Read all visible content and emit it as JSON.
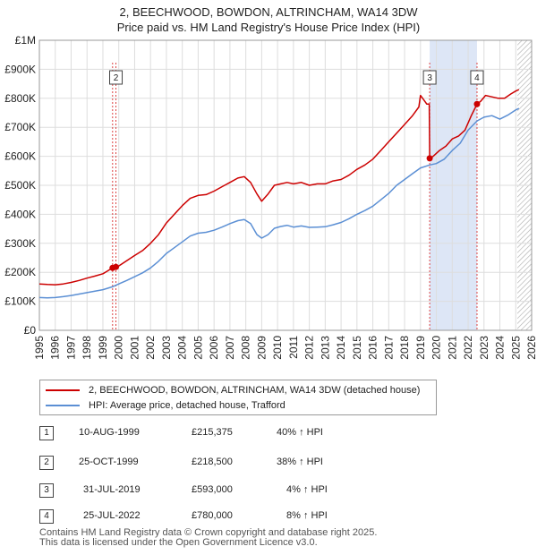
{
  "title_line1": "2, BEECHWOOD, BOWDON, ALTRINCHAM, WA14 3DW",
  "title_line2": "Price paid vs. HM Land Registry's House Price Index (HPI)",
  "legend": {
    "red_label": "2, BEECHWOOD, BOWDON, ALTRINCHAM, WA14 3DW (detached house)",
    "blue_label": "HPI: Average price, detached house, Trafford"
  },
  "colors": {
    "red": "#cc0000",
    "blue": "#5b8fd4",
    "shade": "#dde6f6",
    "grid": "#dddddd"
  },
  "transactions": [
    {
      "num": "1",
      "date": "10-AUG-1999",
      "price": "£215,375",
      "hpi": "40% ↑ HPI"
    },
    {
      "num": "2",
      "date": "25-OCT-1999",
      "price": "£218,500",
      "hpi": "38% ↑ HPI"
    },
    {
      "num": "3",
      "date": "31-JUL-2019",
      "price": "£593,000",
      "hpi": "4% ↑ HPI"
    },
    {
      "num": "4",
      "date": "25-JUL-2022",
      "price": "£780,000",
      "hpi": "8% ↑ HPI"
    }
  ],
  "footer_line1": "Contains HM Land Registry data © Crown copyright and database right 2025.",
  "footer_line2": "This data is licensed under the Open Government Licence v3.0.",
  "chart_data": {
    "type": "line",
    "xlim": [
      1995,
      2026
    ],
    "ylim": [
      0,
      1000000
    ],
    "y_ticks": [
      0,
      100000,
      200000,
      300000,
      400000,
      500000,
      600000,
      700000,
      800000,
      900000,
      1000000
    ],
    "y_tick_labels": [
      "£0",
      "£100K",
      "£200K",
      "£300K",
      "£400K",
      "£500K",
      "£600K",
      "£700K",
      "£800K",
      "£900K",
      "£1M"
    ],
    "x_ticks": [
      1995,
      1996,
      1997,
      1998,
      1999,
      2000,
      2001,
      2002,
      2003,
      2004,
      2005,
      2006,
      2007,
      2008,
      2009,
      2010,
      2011,
      2012,
      2013,
      2014,
      2015,
      2016,
      2017,
      2018,
      2019,
      2020,
      2021,
      2022,
      2023,
      2024,
      2025,
      2026
    ],
    "x_tick_labels": [
      "1995",
      "1996",
      "1997",
      "1998",
      "1999",
      "2000",
      "2001",
      "2002",
      "2003",
      "2004",
      "2005",
      "2006",
      "2007",
      "2008",
      "2009",
      "2010",
      "2011",
      "2012",
      "2013",
      "2014",
      "2015",
      "2016",
      "2017",
      "2018",
      "2019",
      "2020",
      "2021",
      "2022",
      "2023",
      "2024",
      "2025",
      "2026"
    ],
    "shaded_period": [
      2019.58,
      2022.56
    ],
    "future_hatch_from": 2025.1,
    "series": [
      {
        "name": "2, BEECHWOOD, BOWDON, ALTRINCHAM, WA14 3DW (detached house)",
        "color": "#cc0000",
        "points": [
          [
            1995.0,
            160000
          ],
          [
            1995.5,
            158000
          ],
          [
            1996.0,
            157000
          ],
          [
            1996.5,
            160000
          ],
          [
            1997.0,
            165000
          ],
          [
            1997.5,
            172000
          ],
          [
            1998.0,
            180000
          ],
          [
            1998.5,
            187000
          ],
          [
            1999.0,
            195000
          ],
          [
            1999.3,
            205000
          ],
          [
            1999.6,
            215000
          ],
          [
            1999.8,
            218500
          ],
          [
            2000.0,
            222000
          ],
          [
            2000.5,
            240000
          ],
          [
            2001.0,
            258000
          ],
          [
            2001.5,
            275000
          ],
          [
            2002.0,
            300000
          ],
          [
            2002.5,
            330000
          ],
          [
            2003.0,
            370000
          ],
          [
            2003.5,
            400000
          ],
          [
            2004.0,
            430000
          ],
          [
            2004.5,
            455000
          ],
          [
            2005.0,
            465000
          ],
          [
            2005.5,
            468000
          ],
          [
            2006.0,
            480000
          ],
          [
            2006.5,
            495000
          ],
          [
            2007.0,
            510000
          ],
          [
            2007.5,
            525000
          ],
          [
            2007.9,
            530000
          ],
          [
            2008.3,
            510000
          ],
          [
            2008.7,
            470000
          ],
          [
            2009.0,
            445000
          ],
          [
            2009.4,
            470000
          ],
          [
            2009.8,
            500000
          ],
          [
            2010.2,
            505000
          ],
          [
            2010.6,
            510000
          ],
          [
            2011.0,
            505000
          ],
          [
            2011.5,
            510000
          ],
          [
            2012.0,
            500000
          ],
          [
            2012.5,
            505000
          ],
          [
            2013.0,
            505000
          ],
          [
            2013.5,
            515000
          ],
          [
            2014.0,
            520000
          ],
          [
            2014.5,
            535000
          ],
          [
            2015.0,
            555000
          ],
          [
            2015.5,
            570000
          ],
          [
            2016.0,
            590000
          ],
          [
            2016.5,
            620000
          ],
          [
            2017.0,
            650000
          ],
          [
            2017.5,
            680000
          ],
          [
            2018.0,
            710000
          ],
          [
            2018.5,
            740000
          ],
          [
            2018.9,
            770000
          ],
          [
            2019.0,
            810000
          ],
          [
            2019.2,
            795000
          ],
          [
            2019.4,
            780000
          ],
          [
            2019.55,
            780000
          ],
          [
            2019.58,
            593000
          ],
          [
            2019.8,
            600000
          ],
          [
            2020.2,
            620000
          ],
          [
            2020.6,
            635000
          ],
          [
            2021.0,
            660000
          ],
          [
            2021.4,
            670000
          ],
          [
            2021.8,
            690000
          ],
          [
            2022.2,
            740000
          ],
          [
            2022.56,
            780000
          ],
          [
            2022.8,
            790000
          ],
          [
            2023.1,
            810000
          ],
          [
            2023.5,
            805000
          ],
          [
            2023.9,
            800000
          ],
          [
            2024.3,
            800000
          ],
          [
            2024.7,
            815000
          ],
          [
            2025.0,
            825000
          ],
          [
            2025.2,
            830000
          ]
        ]
      },
      {
        "name": "HPI: Average price, detached house, Trafford",
        "color": "#5b8fd4",
        "points": [
          [
            1995.0,
            113000
          ],
          [
            1995.5,
            112000
          ],
          [
            1996.0,
            113000
          ],
          [
            1996.5,
            116000
          ],
          [
            1997.0,
            120000
          ],
          [
            1997.5,
            125000
          ],
          [
            1998.0,
            130000
          ],
          [
            1998.5,
            135000
          ],
          [
            1999.0,
            140000
          ],
          [
            1999.6,
            150000
          ],
          [
            2000.0,
            160000
          ],
          [
            2000.5,
            172000
          ],
          [
            2001.0,
            185000
          ],
          [
            2001.5,
            198000
          ],
          [
            2002.0,
            215000
          ],
          [
            2002.5,
            238000
          ],
          [
            2003.0,
            265000
          ],
          [
            2003.5,
            285000
          ],
          [
            2004.0,
            305000
          ],
          [
            2004.5,
            325000
          ],
          [
            2005.0,
            335000
          ],
          [
            2005.5,
            338000
          ],
          [
            2006.0,
            345000
          ],
          [
            2006.5,
            356000
          ],
          [
            2007.0,
            368000
          ],
          [
            2007.5,
            378000
          ],
          [
            2007.9,
            382000
          ],
          [
            2008.3,
            368000
          ],
          [
            2008.7,
            330000
          ],
          [
            2009.0,
            318000
          ],
          [
            2009.4,
            330000
          ],
          [
            2009.8,
            352000
          ],
          [
            2010.2,
            358000
          ],
          [
            2010.6,
            362000
          ],
          [
            2011.0,
            356000
          ],
          [
            2011.5,
            360000
          ],
          [
            2012.0,
            355000
          ],
          [
            2012.5,
            356000
          ],
          [
            2013.0,
            357000
          ],
          [
            2013.5,
            364000
          ],
          [
            2014.0,
            372000
          ],
          [
            2014.5,
            385000
          ],
          [
            2015.0,
            400000
          ],
          [
            2015.5,
            413000
          ],
          [
            2016.0,
            428000
          ],
          [
            2016.5,
            450000
          ],
          [
            2017.0,
            472000
          ],
          [
            2017.5,
            500000
          ],
          [
            2018.0,
            520000
          ],
          [
            2018.5,
            540000
          ],
          [
            2019.0,
            560000
          ],
          [
            2019.58,
            570000
          ],
          [
            2020.0,
            575000
          ],
          [
            2020.5,
            590000
          ],
          [
            2021.0,
            620000
          ],
          [
            2021.5,
            645000
          ],
          [
            2022.0,
            690000
          ],
          [
            2022.56,
            722000
          ],
          [
            2023.0,
            735000
          ],
          [
            2023.5,
            740000
          ],
          [
            2024.0,
            728000
          ],
          [
            2024.5,
            742000
          ],
          [
            2025.0,
            760000
          ],
          [
            2025.2,
            765000
          ]
        ]
      }
    ],
    "markers": [
      {
        "label": "1",
        "x": 1999.61,
        "y": 215375
      },
      {
        "label": "2",
        "x": 1999.82,
        "y": 218500
      },
      {
        "label": "3",
        "x": 2019.58,
        "y": 593000
      },
      {
        "label": "4",
        "x": 2022.56,
        "y": 780000
      }
    ],
    "marker_boxes_shown": [
      "2",
      "3",
      "4"
    ]
  }
}
